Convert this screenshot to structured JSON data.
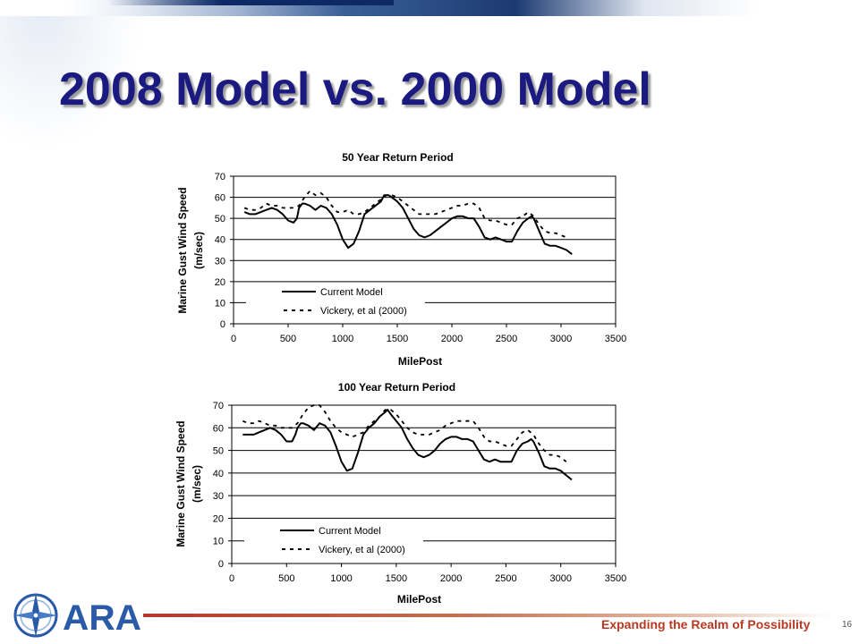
{
  "slide": {
    "title": "2008 Model vs. 2000 Model",
    "tagline": "Expanding the Realm of Possibility",
    "page_number": "16",
    "logo_text": "ARA",
    "title_color": "#1a1a80",
    "tagline_color": "#b83a22"
  },
  "chart_data": [
    {
      "type": "line",
      "title": "50 Year Return Period",
      "xlabel": "MilePost",
      "ylabel": "Marine Gust Wind Speed",
      "ylabel2": "(m/sec)",
      "xlim": [
        0,
        3500
      ],
      "ylim": [
        0,
        70
      ],
      "xticks": [
        0,
        500,
        1000,
        1500,
        2000,
        2500,
        3000,
        3500
      ],
      "yticks": [
        0,
        10,
        20,
        30,
        40,
        50,
        60,
        70
      ],
      "grid": "horizontal",
      "legend_position": "bottom-left",
      "series": [
        {
          "name": "Current Model",
          "style": "solid",
          "x": [
            100,
            150,
            200,
            250,
            300,
            350,
            400,
            450,
            500,
            550,
            580,
            600,
            630,
            650,
            700,
            750,
            800,
            850,
            900,
            950,
            1000,
            1050,
            1100,
            1150,
            1200,
            1250,
            1300,
            1350,
            1380,
            1420,
            1450,
            1500,
            1550,
            1600,
            1650,
            1700,
            1750,
            1800,
            1850,
            1900,
            1950,
            2000,
            2050,
            2100,
            2150,
            2200,
            2250,
            2300,
            2350,
            2400,
            2450,
            2500,
            2550,
            2600,
            2650,
            2700,
            2730,
            2750,
            2800,
            2850,
            2900,
            2950,
            3000,
            3050,
            3100
          ],
          "y": [
            53,
            52,
            52,
            53,
            54,
            55,
            54,
            52,
            49,
            48,
            50,
            55,
            57,
            57,
            56,
            54,
            56,
            55,
            52,
            47,
            40,
            36,
            38,
            44,
            52,
            54,
            56,
            58,
            61,
            61,
            60,
            58,
            55,
            50,
            45,
            42,
            41,
            42,
            44,
            46,
            48,
            50,
            51,
            51,
            50,
            50,
            46,
            41,
            40,
            41,
            40,
            39,
            39,
            44,
            48,
            50,
            51,
            50,
            44,
            38,
            37,
            37,
            36,
            35,
            33
          ]
        },
        {
          "name": "Vickery, et al (2000)",
          "style": "dashed",
          "x": [
            100,
            150,
            200,
            250,
            300,
            350,
            400,
            450,
            500,
            550,
            600,
            650,
            700,
            750,
            800,
            850,
            900,
            950,
            1000,
            1050,
            1100,
            1150,
            1200,
            1250,
            1300,
            1350,
            1400,
            1450,
            1500,
            1550,
            1600,
            1650,
            1700,
            1750,
            1800,
            1850,
            1900,
            1950,
            2000,
            2050,
            2100,
            2150,
            2200,
            2250,
            2300,
            2350,
            2400,
            2450,
            2500,
            2550,
            2600,
            2650,
            2700,
            2750,
            2800,
            2850,
            2900,
            2950,
            3000,
            3050
          ],
          "y": [
            55,
            54,
            54,
            55,
            57,
            56,
            56,
            55,
            55,
            55,
            56,
            60,
            63,
            61,
            62,
            60,
            56,
            53,
            53,
            54,
            52,
            52,
            53,
            55,
            57,
            59,
            61,
            61,
            60,
            58,
            56,
            54,
            52,
            52,
            52,
            52,
            53,
            54,
            55,
            56,
            56,
            57,
            57,
            55,
            50,
            49,
            49,
            48,
            47,
            47,
            50,
            51,
            53,
            51,
            47,
            44,
            43,
            43,
            42,
            41
          ]
        }
      ]
    },
    {
      "type": "line",
      "title": "100 Year Return Period",
      "xlabel": "MilePost",
      "ylabel": "Marine Gust Wind Speed",
      "ylabel2": "(m/sec)",
      "xlim": [
        0,
        3500
      ],
      "ylim": [
        0,
        70
      ],
      "xticks": [
        0,
        500,
        1000,
        1500,
        2000,
        2500,
        3000,
        3500
      ],
      "yticks": [
        0,
        10,
        20,
        30,
        40,
        50,
        60,
        70
      ],
      "grid": "horizontal",
      "legend_position": "bottom-left",
      "series": [
        {
          "name": "Current Model",
          "style": "solid",
          "x": [
            100,
            150,
            200,
            250,
            300,
            350,
            400,
            450,
            500,
            550,
            580,
            600,
            630,
            650,
            700,
            750,
            800,
            850,
            900,
            950,
            1000,
            1050,
            1100,
            1150,
            1200,
            1250,
            1300,
            1350,
            1400,
            1420,
            1450,
            1500,
            1550,
            1600,
            1650,
            1700,
            1750,
            1800,
            1850,
            1900,
            1950,
            2000,
            2050,
            2100,
            2150,
            2200,
            2250,
            2300,
            2350,
            2400,
            2450,
            2500,
            2550,
            2600,
            2650,
            2700,
            2730,
            2750,
            2800,
            2850,
            2900,
            2950,
            3000,
            3050,
            3100
          ],
          "y": [
            57,
            57,
            57,
            58,
            59,
            60,
            59,
            57,
            54,
            54,
            57,
            60,
            62,
            62,
            61,
            59,
            62,
            61,
            58,
            52,
            45,
            41,
            42,
            49,
            57,
            60,
            62,
            65,
            67,
            68,
            66,
            63,
            60,
            55,
            51,
            48,
            47,
            48,
            50,
            53,
            55,
            56,
            56,
            55,
            55,
            54,
            50,
            46,
            45,
            46,
            45,
            45,
            45,
            50,
            53,
            54,
            55,
            54,
            49,
            43,
            42,
            42,
            41,
            39,
            37
          ]
        },
        {
          "name": "Vickery, et al (2000)",
          "style": "dashed",
          "x": [
            100,
            150,
            200,
            250,
            300,
            350,
            400,
            450,
            500,
            550,
            600,
            650,
            700,
            750,
            800,
            850,
            900,
            950,
            1000,
            1050,
            1100,
            1150,
            1200,
            1250,
            1300,
            1350,
            1400,
            1450,
            1500,
            1550,
            1600,
            1650,
            1700,
            1750,
            1800,
            1850,
            1900,
            1950,
            2000,
            2050,
            2100,
            2150,
            2200,
            2250,
            2300,
            2350,
            2400,
            2450,
            2500,
            2550,
            2600,
            2650,
            2700,
            2750,
            2800,
            2850,
            2900,
            2950,
            3000,
            3050
          ],
          "y": [
            63,
            62,
            62,
            63,
            62,
            61,
            61,
            60,
            60,
            60,
            62,
            66,
            69,
            70,
            70,
            67,
            63,
            60,
            58,
            57,
            56,
            57,
            58,
            61,
            63,
            65,
            68,
            68,
            66,
            63,
            60,
            58,
            57,
            57,
            57,
            58,
            59,
            61,
            62,
            63,
            63,
            63,
            63,
            60,
            56,
            54,
            54,
            53,
            52,
            52,
            55,
            58,
            59,
            57,
            53,
            50,
            48,
            48,
            47,
            45
          ]
        }
      ]
    }
  ]
}
